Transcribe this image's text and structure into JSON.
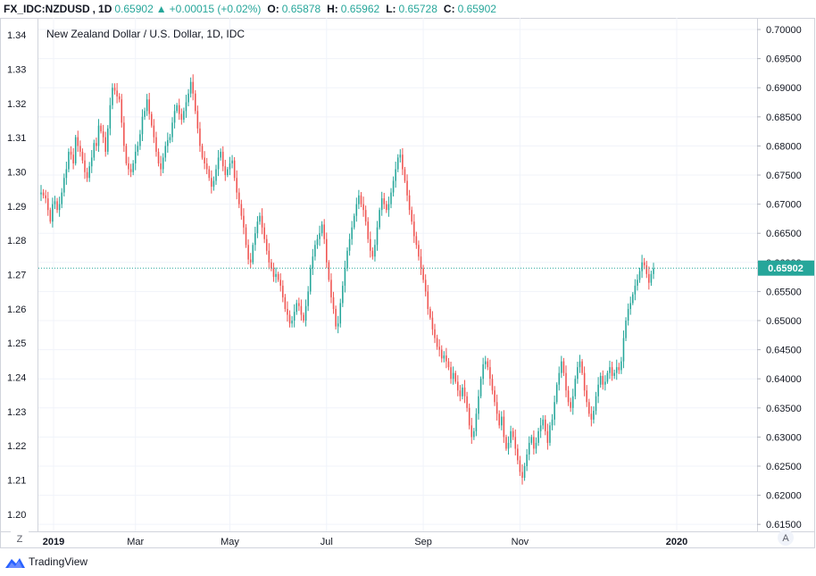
{
  "header": {
    "symbol": "FX_IDC:NZDUSD",
    "interval": "1D",
    "last": "0.65902",
    "change": "+0.00015 (+0.02%)",
    "open_label": "O:",
    "open": "0.65878",
    "high_label": "H:",
    "high": "0.65962",
    "low_label": "L:",
    "low": "0.65728",
    "close_label": "C:",
    "close": "0.65902"
  },
  "chart_data": {
    "type": "candlestick",
    "title": "New Zealand Dollar / U.S. Dollar, 1D, IDC",
    "x_ticks": [
      "2019",
      "Mar",
      "May",
      "Jul",
      "Sep",
      "Nov",
      "2020"
    ],
    "left_axis": {
      "ticks": [
        "1.34",
        "1.33",
        "1.32",
        "1.31",
        "1.30",
        "1.29",
        "1.28",
        "1.27",
        "1.26",
        "1.25",
        "1.24",
        "1.23",
        "1.22",
        "1.21",
        "1.20"
      ],
      "range": [
        1.195,
        1.345
      ]
    },
    "right_axis": {
      "ticks": [
        "0.70000",
        "0.69500",
        "0.69000",
        "0.68500",
        "0.68000",
        "0.67500",
        "0.67000",
        "0.66500",
        "0.66000",
        "0.65500",
        "0.65000",
        "0.64500",
        "0.64000",
        "0.63500",
        "0.63000",
        "0.62500",
        "0.62000",
        "0.61500"
      ],
      "range": [
        0.6138,
        0.702
      ]
    },
    "last_price": "0.65902",
    "last_value": 0.65902,
    "grid": true,
    "up_color": "#26a69a",
    "down_color": "#ef5350",
    "closes": [
      0.672,
      0.6715,
      0.671,
      0.669,
      0.667,
      0.67,
      0.6705,
      0.669,
      0.67,
      0.672,
      0.6745,
      0.676,
      0.679,
      0.6785,
      0.677,
      0.6815,
      0.68,
      0.679,
      0.6775,
      0.6755,
      0.6745,
      0.6765,
      0.678,
      0.6805,
      0.68,
      0.6835,
      0.6825,
      0.6815,
      0.679,
      0.683,
      0.687,
      0.69,
      0.6895,
      0.6885,
      0.688,
      0.684,
      0.68,
      0.677,
      0.676,
      0.6755,
      0.677,
      0.679,
      0.68,
      0.682,
      0.685,
      0.686,
      0.688,
      0.6855,
      0.6835,
      0.6815,
      0.679,
      0.677,
      0.676,
      0.678,
      0.68,
      0.681,
      0.6815,
      0.684,
      0.686,
      0.687,
      0.6855,
      0.6845,
      0.686,
      0.6875,
      0.689,
      0.691,
      0.689,
      0.686,
      0.683,
      0.68,
      0.678,
      0.677,
      0.676,
      0.6745,
      0.673,
      0.674,
      0.676,
      0.678,
      0.679,
      0.6765,
      0.675,
      0.676,
      0.677,
      0.6775,
      0.6745,
      0.672,
      0.67,
      0.668,
      0.666,
      0.663,
      0.6605,
      0.66,
      0.663,
      0.665,
      0.667,
      0.668,
      0.666,
      0.664,
      0.662,
      0.66,
      0.659,
      0.6575,
      0.658,
      0.657,
      0.656,
      0.654,
      0.652,
      0.651,
      0.6495,
      0.65,
      0.6515,
      0.653,
      0.6525,
      0.651,
      0.65,
      0.6525,
      0.655,
      0.659,
      0.661,
      0.663,
      0.664,
      0.665,
      0.6665,
      0.664,
      0.66,
      0.657,
      0.654,
      0.652,
      0.649,
      0.6495,
      0.653,
      0.656,
      0.659,
      0.662,
      0.664,
      0.666,
      0.668,
      0.67,
      0.6715,
      0.67,
      0.669,
      0.667,
      0.664,
      0.662,
      0.661,
      0.663,
      0.666,
      0.669,
      0.671,
      0.67,
      0.669,
      0.67,
      0.672,
      0.674,
      0.676,
      0.678,
      0.6785,
      0.676,
      0.674,
      0.6715,
      0.669,
      0.667,
      0.6645,
      0.663,
      0.661,
      0.659,
      0.657,
      0.655,
      0.652,
      0.6505,
      0.6485,
      0.647,
      0.6455,
      0.645,
      0.6435,
      0.644,
      0.643,
      0.642,
      0.64,
      0.641,
      0.6395,
      0.638,
      0.637,
      0.6385,
      0.637,
      0.635,
      0.632,
      0.63,
      0.631,
      0.634,
      0.637,
      0.64,
      0.6425,
      0.643,
      0.642,
      0.64,
      0.638,
      0.636,
      0.634,
      0.632,
      0.6335,
      0.63,
      0.628,
      0.629,
      0.631,
      0.63,
      0.628,
      0.626,
      0.624,
      0.623,
      0.625,
      0.627,
      0.629,
      0.63,
      0.628,
      0.629,
      0.631,
      0.632,
      0.633,
      0.631,
      0.629,
      0.632,
      0.633,
      0.636,
      0.639,
      0.641,
      0.643,
      0.641,
      0.638,
      0.636,
      0.635,
      0.637,
      0.64,
      0.642,
      0.643,
      0.641,
      0.638,
      0.636,
      0.634,
      0.633,
      0.6345,
      0.637,
      0.639,
      0.6405,
      0.639,
      0.6395,
      0.641,
      0.642,
      0.6405,
      0.641,
      0.642,
      0.6415,
      0.643,
      0.647,
      0.65,
      0.652,
      0.653,
      0.6545,
      0.656,
      0.657,
      0.6585,
      0.66,
      0.6595,
      0.658,
      0.6565,
      0.658,
      0.659
    ]
  },
  "footer": {
    "brand": "TradingView"
  },
  "controls": {
    "left_button": "Z",
    "right_button": "A"
  }
}
